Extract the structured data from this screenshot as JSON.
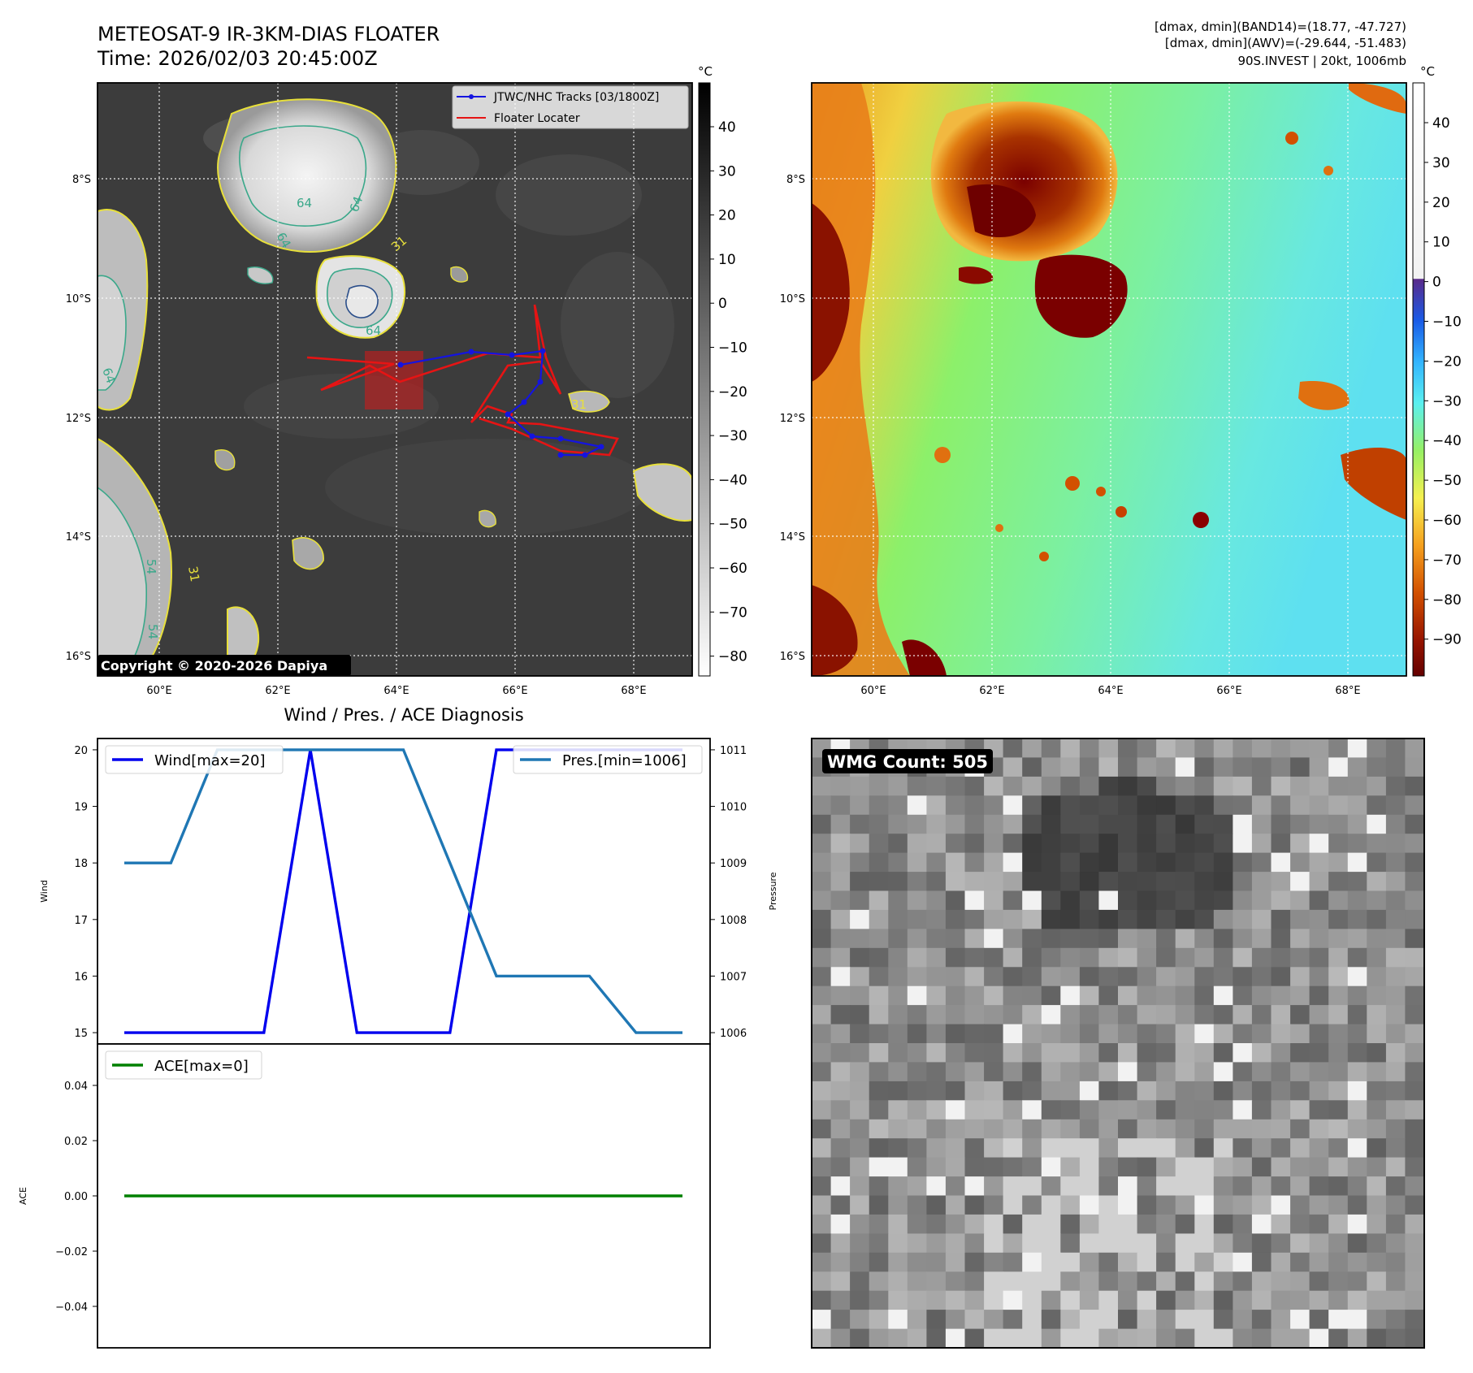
{
  "header": {
    "title": "METEOSAT-9 IR-3KM-DIAS FLOATER",
    "time": "Time: 2026/02/03 20:45:00Z",
    "info_line1": "[dmax, dmin](BAND14)=(18.77, -47.727)",
    "info_line2": "[dmax, dmin](AWV)=(-29.644, -51.483)",
    "info_line3": "90S.INVEST | 20kt, 1006mb"
  },
  "ir_panel": {
    "lon_ticks": [
      "60°E",
      "62°E",
      "64°E",
      "66°E",
      "68°E"
    ],
    "lat_ticks": [
      "8°S",
      "10°S",
      "12°S",
      "14°S",
      "16°S"
    ],
    "legend_track": "JTWC/NHC Tracks [03/1800Z]",
    "legend_locater": "Floater Locater",
    "copyright": "Copyright © 2020-2026 Dapiya",
    "contour_labels": [
      "64",
      "64",
      "64",
      "31",
      "64",
      "31",
      "64",
      "31",
      "54",
      "54"
    ],
    "colorbar_unit": "°C",
    "colorbar_ticks": [
      "40",
      "30",
      "20",
      "10",
      "0",
      "−10",
      "−20",
      "−30",
      "−40",
      "−50",
      "−60",
      "−70",
      "−80"
    ]
  },
  "color_panel": {
    "lon_ticks": [
      "60°E",
      "62°E",
      "64°E",
      "66°E",
      "68°E"
    ],
    "lat_ticks": [
      "8°S",
      "10°S",
      "12°S",
      "14°S",
      "16°S"
    ],
    "colorbar_unit": "°C",
    "colorbar_ticks": [
      "40",
      "30",
      "20",
      "10",
      "0",
      "−10",
      "−20",
      "−30",
      "−40",
      "−50",
      "−60",
      "−70",
      "−80",
      "−90"
    ]
  },
  "wmg_panel": {
    "label": "WMG Count: 505"
  },
  "colors": {
    "wind": "#0000ee",
    "pressure": "#1f77b4",
    "ace": "#008000",
    "track": "#1414e0",
    "locater": "#e61414"
  },
  "chart_data": [
    {
      "type": "line",
      "title": "Wind / Pres. / ACE Diagnosis",
      "x": [
        0,
        1,
        2,
        3,
        4,
        5,
        6,
        7,
        8,
        9,
        10,
        11,
        12
      ],
      "series": [
        {
          "name": "Wind[max=20]",
          "axis": "left",
          "values": [
            15,
            15,
            15,
            15,
            20,
            15,
            15,
            15,
            20,
            20,
            20,
            20,
            20
          ]
        },
        {
          "name": "Pres.[min=1006]",
          "axis": "right",
          "values": [
            1009,
            1009,
            1011,
            1011,
            1011,
            1011,
            1011,
            1009,
            1007,
            1007,
            1007,
            1006,
            1006
          ]
        }
      ],
      "ylabel": "Wind",
      "ylabel_right": "Pressure",
      "ylim": [
        14.8,
        20.2
      ],
      "ylim_right": [
        1005.8,
        1011.2
      ],
      "yticks": [
        "15",
        "16",
        "17",
        "18",
        "19",
        "20"
      ],
      "yticks_right": [
        "1006",
        "1007",
        "1008",
        "1009",
        "1010",
        "1011"
      ]
    },
    {
      "type": "line",
      "x": [
        0,
        12
      ],
      "series": [
        {
          "name": "ACE[max=0]",
          "values": [
            0,
            0
          ]
        }
      ],
      "ylabel": "ACE",
      "ylim": [
        -0.055,
        0.055
      ],
      "yticks": [
        "0.04",
        "0.02",
        "0.00",
        "−0.02",
        "−0.04"
      ]
    }
  ]
}
